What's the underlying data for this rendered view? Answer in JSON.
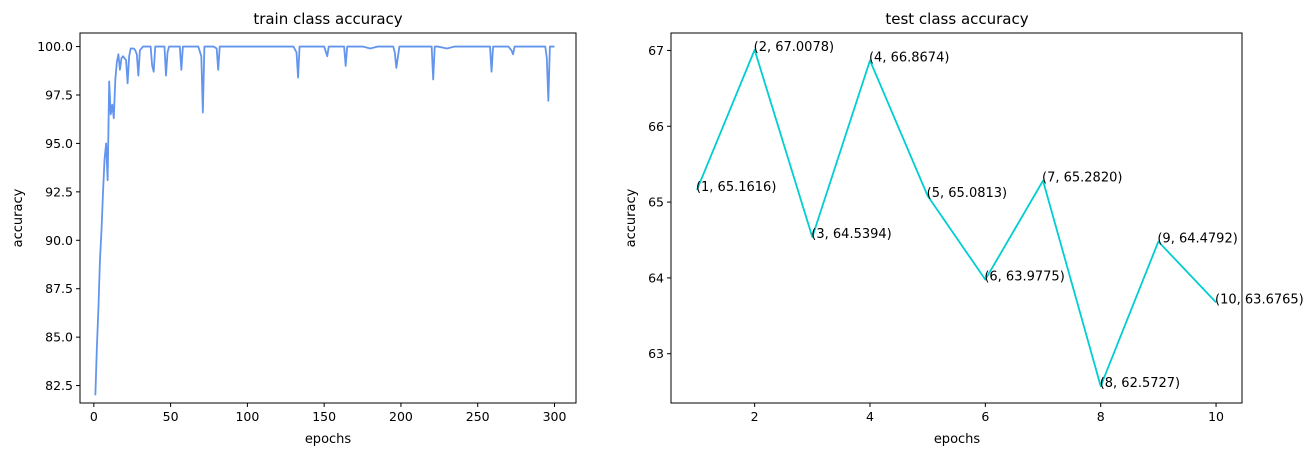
{
  "chart_data": [
    {
      "type": "line",
      "title": "train class accuracy",
      "xlabel": "epochs",
      "ylabel": "accuracy",
      "xlim": [
        -9,
        314
      ],
      "ylim": [
        81.6,
        100.7
      ],
      "xticks": [
        0,
        50,
        100,
        150,
        200,
        250,
        300
      ],
      "yticks": [
        82.5,
        85.0,
        87.5,
        90.0,
        92.5,
        95.0,
        97.5,
        100.0
      ],
      "ytick_labels": [
        "82.5",
        "85.0",
        "87.5",
        "90.0",
        "92.5",
        "95.0",
        "97.5",
        "100.0"
      ],
      "color": "#6495ed",
      "grid": false,
      "series": [
        {
          "x": [
            1,
            2,
            3,
            4,
            5,
            6,
            7,
            8,
            9,
            10,
            11,
            12,
            13,
            14,
            15,
            16,
            17,
            18,
            19,
            20,
            21,
            22,
            23,
            24,
            25,
            26,
            27,
            28,
            29,
            30,
            31,
            32,
            33,
            34,
            35,
            36,
            37,
            38,
            39,
            40,
            41,
            42,
            43,
            44,
            45,
            46,
            47,
            48,
            49,
            50,
            51,
            52,
            53,
            54,
            55,
            56,
            57,
            58,
            59,
            60,
            62,
            64,
            66,
            68,
            70,
            71,
            72,
            74,
            76,
            78,
            80,
            81,
            82,
            84,
            86,
            88,
            90,
            95,
            100,
            105,
            110,
            115,
            120,
            125,
            130,
            132,
            133,
            134,
            136,
            140,
            145,
            150,
            152,
            153,
            154,
            156,
            160,
            163,
            164,
            165,
            167,
            170,
            175,
            180,
            185,
            190,
            195,
            196,
            197,
            199,
            205,
            210,
            215,
            220,
            221,
            222,
            224,
            230,
            235,
            240,
            245,
            250,
            255,
            258,
            259,
            260,
            262,
            265,
            270,
            272,
            273,
            274,
            276,
            280,
            285,
            290,
            294,
            295,
            296,
            297,
            298,
            299,
            300
          ],
          "y": [
            82.0,
            84.5,
            86.5,
            89.0,
            90.5,
            92.5,
            94.2,
            95.0,
            93.1,
            98.2,
            96.5,
            97.0,
            96.3,
            98.3,
            99.2,
            99.6,
            98.8,
            99.4,
            99.5,
            99.4,
            99.3,
            98.1,
            99.5,
            99.9,
            99.9,
            99.9,
            99.8,
            99.6,
            98.5,
            99.8,
            99.9,
            100.0,
            100.0,
            100.0,
            100.0,
            100.0,
            100.0,
            99.0,
            98.7,
            100.0,
            100.0,
            100.0,
            100.0,
            100.0,
            100.0,
            100.0,
            98.5,
            99.7,
            100.0,
            100.0,
            100.0,
            100.0,
            100.0,
            100.0,
            100.0,
            100.0,
            98.8,
            100.0,
            100.0,
            100.0,
            100.0,
            100.0,
            100.0,
            100.0,
            99.5,
            96.6,
            100.0,
            100.0,
            100.0,
            100.0,
            99.9,
            98.8,
            100.0,
            100.0,
            100.0,
            100.0,
            100.0,
            100.0,
            100.0,
            100.0,
            100.0,
            100.0,
            100.0,
            100.0,
            100.0,
            99.7,
            98.4,
            100.0,
            100.0,
            100.0,
            100.0,
            100.0,
            99.5,
            100.0,
            100.0,
            100.0,
            100.0,
            100.0,
            99.0,
            100.0,
            100.0,
            100.0,
            100.0,
            99.9,
            100.0,
            100.0,
            100.0,
            99.7,
            98.9,
            100.0,
            100.0,
            100.0,
            100.0,
            100.0,
            98.3,
            100.0,
            100.0,
            99.9,
            100.0,
            100.0,
            100.0,
            100.0,
            100.0,
            100.0,
            98.7,
            100.0,
            100.0,
            100.0,
            100.0,
            99.8,
            99.6,
            100.0,
            100.0,
            100.0,
            100.0,
            100.0,
            100.0,
            99.4,
            97.2,
            100.0,
            100.0,
            100.0,
            100.0
          ]
        }
      ]
    },
    {
      "type": "line",
      "title": "test class accuracy",
      "xlabel": "epochs",
      "ylabel": "accuracy",
      "xlim": [
        0.55,
        10.45
      ],
      "ylim": [
        62.35,
        67.23
      ],
      "xticks": [
        2,
        4,
        6,
        8,
        10
      ],
      "yticks": [
        63,
        64,
        65,
        66,
        67
      ],
      "color": "#00ced1",
      "grid": false,
      "series": [
        {
          "x": [
            1,
            2,
            3,
            4,
            5,
            6,
            7,
            8,
            9,
            10
          ],
          "y": [
            65.1616,
            67.0078,
            64.5394,
            66.8674,
            65.0813,
            63.9775,
            65.282,
            62.5727,
            64.4792,
            63.6765
          ]
        }
      ],
      "annotations": [
        "(1, 65.1616)",
        "(2, 67.0078)",
        "(3, 64.5394)",
        "(4, 66.8674)",
        "(5, 65.0813)",
        "(6, 63.9775)",
        "(7, 65.2820)",
        "(8, 62.5727)",
        "(9, 64.4792)",
        "(10, 63.6765)"
      ]
    }
  ]
}
